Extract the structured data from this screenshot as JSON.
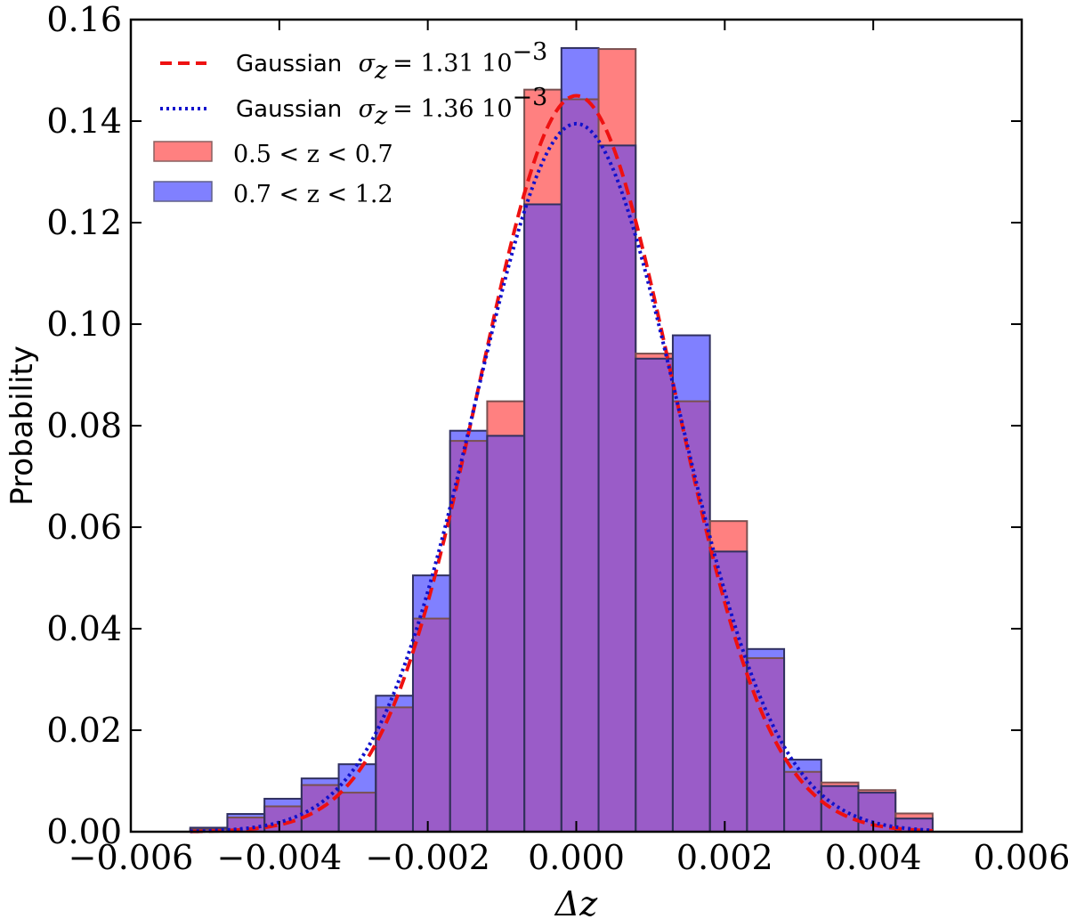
{
  "chart_data": {
    "type": "bar",
    "ylabel": "Probability",
    "xlabel": "Δz",
    "xlim": [
      -0.006,
      0.006
    ],
    "ylim": [
      0.0,
      0.16
    ],
    "xticks": [
      "−0.006",
      "−0.004",
      "−0.002",
      "0.000",
      "0.002",
      "0.004",
      "0.006"
    ],
    "xtick_values": [
      -0.006,
      -0.004,
      -0.002,
      0.0,
      0.002,
      0.004,
      0.006
    ],
    "yticks": [
      "0.00",
      "0.02",
      "0.04",
      "0.06",
      "0.08",
      "0.10",
      "0.12",
      "0.14",
      "0.16"
    ],
    "ytick_values": [
      0.0,
      0.02,
      0.04,
      0.06,
      0.08,
      0.1,
      0.12,
      0.14,
      0.16
    ],
    "bin_edges": [
      -0.0052,
      -0.0047,
      -0.0042,
      -0.0037,
      -0.0032,
      -0.0027,
      -0.0022,
      -0.0017,
      -0.0012,
      -0.0007,
      -0.0002,
      0.0003,
      0.0008,
      0.0013,
      0.0018,
      0.0023,
      0.0028,
      0.0033,
      0.0038,
      0.0043,
      0.0048
    ],
    "series": [
      {
        "name": "0.5 < z < 0.7",
        "color": "#ff8080",
        "values": [
          0.0005,
          0.0028,
          0.005,
          0.0092,
          0.0077,
          0.0245,
          0.042,
          0.077,
          0.0848,
          0.1462,
          0.1443,
          0.1542,
          0.0942,
          0.0848,
          0.0612,
          0.0342,
          0.0118,
          0.0097,
          0.0082,
          0.0036
        ]
      },
      {
        "name": "0.7 < z < 1.2",
        "color": "#8080ff",
        "values": [
          0.0008,
          0.0035,
          0.0065,
          0.0105,
          0.0133,
          0.0268,
          0.0505,
          0.079,
          0.078,
          0.1236,
          0.1544,
          0.1352,
          0.0932,
          0.0978,
          0.0552,
          0.036,
          0.0142,
          0.009,
          0.0077,
          0.0026
        ]
      }
    ],
    "overlap_color": "#9a5cc8",
    "curves": [
      {
        "name": "Gaussian",
        "sigma_label": "1.31 10",
        "sigma": 0.00131,
        "mean": 0.0,
        "peak": 0.145,
        "color": "#ee1111",
        "style": "dashed"
      },
      {
        "name": "Gaussian",
        "sigma_label": "1.36 10",
        "sigma": 0.00136,
        "mean": 0.0,
        "peak": 0.1395,
        "color": "#1111cc",
        "style": "dotted"
      }
    ],
    "curve_range": [
      -0.0052,
      0.0048
    ],
    "legend": {
      "location": "top-left",
      "entries": [
        {
          "label_text": "Gaussian",
          "symbol": "σ",
          "subscript": "z",
          "value": "= 1.31 10",
          "exponent": "−3"
        },
        {
          "label_text": "Gaussian",
          "symbol": "σ",
          "subscript": "z",
          "value": "= 1.36 10",
          "exponent": "−3"
        },
        {
          "label": "0.5 < z < 0.7"
        },
        {
          "label": "0.7 < z < 1.2"
        }
      ]
    },
    "grid": false
  }
}
